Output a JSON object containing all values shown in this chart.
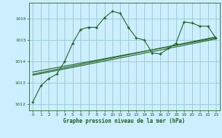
{
  "title": "Graphe pression niveau de la mer (hPa)",
  "bg_color": "#cceeff",
  "grid_color": "#99cccc",
  "line_color": "#1a5c1a",
  "marker_color": "#1a5c1a",
  "xlim": [
    -0.5,
    23.5
  ],
  "ylim": [
    1011.7,
    1016.75
  ],
  "yticks": [
    1012,
    1013,
    1014,
    1015,
    1016
  ],
  "xticks": [
    0,
    1,
    2,
    3,
    4,
    5,
    6,
    7,
    8,
    9,
    10,
    11,
    12,
    13,
    14,
    15,
    16,
    17,
    18,
    19,
    20,
    21,
    22,
    23
  ],
  "series1_x": [
    0,
    1,
    2,
    3,
    4,
    5,
    6,
    7,
    8,
    9,
    10,
    11,
    12,
    13,
    14,
    15,
    16,
    17,
    18,
    19,
    20,
    21,
    22,
    23
  ],
  "series1_y": [
    1012.1,
    1012.85,
    1013.2,
    1013.4,
    1014.0,
    1014.85,
    1015.5,
    1015.6,
    1015.6,
    1016.05,
    1016.35,
    1016.25,
    1015.6,
    1015.1,
    1015.0,
    1014.4,
    1014.35,
    1014.6,
    1014.85,
    1015.85,
    1015.8,
    1015.65,
    1015.65,
    1015.1
  ],
  "series2_x": [
    0,
    23
  ],
  "series2_y": [
    1013.35,
    1015.05
  ],
  "series3_x": [
    0,
    23
  ],
  "series3_y": [
    1013.4,
    1015.15
  ],
  "series4_x": [
    0,
    23
  ],
  "series4_y": [
    1013.5,
    1015.1
  ]
}
